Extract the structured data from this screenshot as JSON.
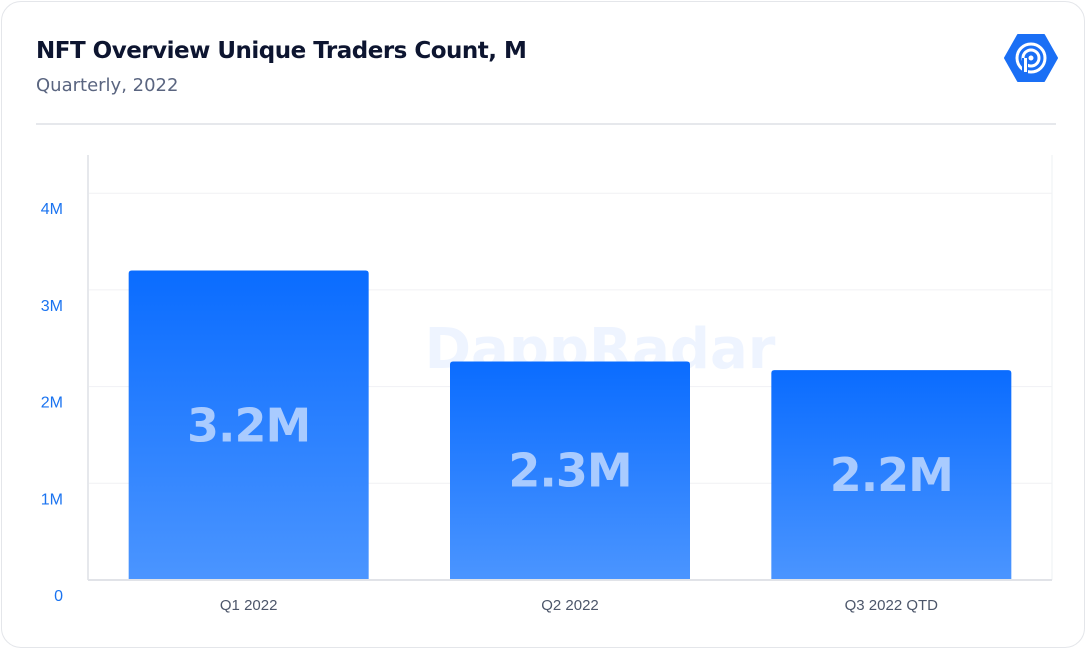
{
  "header": {
    "title": "NFT Overview Unique Traders Count, M",
    "subtitle": "Quarterly, 2022"
  },
  "logo": {
    "icon": "dappradar-logo-icon",
    "color": "#1a6ff5"
  },
  "watermark": "DappRadar",
  "chart_data": {
    "type": "bar",
    "title": "NFT Overview Unique Traders Count, M",
    "subtitle": "Quarterly, 2022",
    "categories": [
      "Q1 2022",
      "Q2 2022",
      "Q3 2022 QTD"
    ],
    "values": [
      3.2,
      2.26,
      2.17
    ],
    "data_labels": [
      "3.2M",
      "2.3M",
      "2.2M"
    ],
    "yticks": [
      {
        "v": 0,
        "label": "0"
      },
      {
        "v": 1,
        "label": "1M"
      },
      {
        "v": 2,
        "label": "2M"
      },
      {
        "v": 3,
        "label": "3M"
      },
      {
        "v": 4,
        "label": "4M"
      }
    ],
    "ylim": [
      0,
      4.4
    ],
    "grid": true,
    "bar_color_top": "#0a6cff",
    "bar_color_bottom": "#4b95ff",
    "xlabel": "",
    "ylabel": ""
  }
}
